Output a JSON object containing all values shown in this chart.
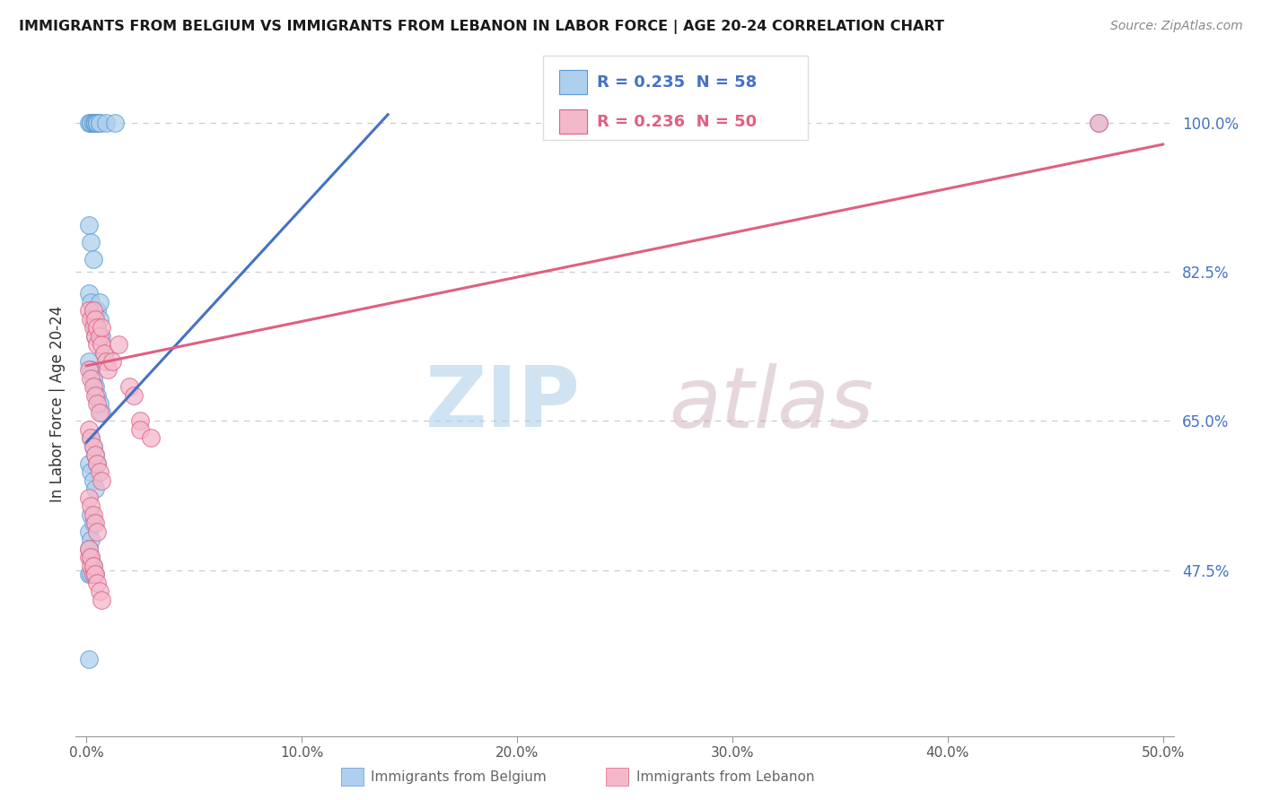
{
  "title": "IMMIGRANTS FROM BELGIUM VS IMMIGRANTS FROM LEBANON IN LABOR FORCE | AGE 20-24 CORRELATION CHART",
  "source": "Source: ZipAtlas.com",
  "ylabel": "In Labor Force | Age 20-24",
  "xlim": [
    -0.005,
    0.505
  ],
  "ylim": [
    0.28,
    1.06
  ],
  "xtick_labels": [
    "0.0%",
    "10.0%",
    "20.0%",
    "30.0%",
    "40.0%",
    "50.0%"
  ],
  "xtick_vals": [
    0.0,
    0.1,
    0.2,
    0.3,
    0.4,
    0.5
  ],
  "ytick_labels": [
    "47.5%",
    "65.0%",
    "82.5%",
    "100.0%"
  ],
  "ytick_vals": [
    0.475,
    0.65,
    0.825,
    1.0
  ],
  "belgium_fill": "#aecfed",
  "belgium_edge": "#5b9bd5",
  "lebanon_fill": "#f4b8cb",
  "lebanon_edge": "#e06080",
  "belgium_line_color": "#4472c4",
  "lebanon_line_color": "#e06080",
  "legend_text_belgium": "R = 0.235  N = 58",
  "legend_text_lebanon": "R = 0.236  N = 50",
  "watermark_zip": "ZIP",
  "watermark_atlas": "atlas",
  "grid_color": "#cccccc",
  "background_color": "#ffffff",
  "bottom_legend_belgium": "Immigrants from Belgium",
  "bottom_legend_lebanon": "Immigrants from Lebanon",
  "bel_x": [
    0.001,
    0.002,
    0.002,
    0.003,
    0.003,
    0.004,
    0.004,
    0.004,
    0.005,
    0.005,
    0.005,
    0.006,
    0.006,
    0.009,
    0.013,
    0.001,
    0.002,
    0.003,
    0.001,
    0.002,
    0.003,
    0.003,
    0.004,
    0.004,
    0.005,
    0.005,
    0.006,
    0.006,
    0.007,
    0.008,
    0.001,
    0.002,
    0.003,
    0.004,
    0.005,
    0.006,
    0.007,
    0.001,
    0.002,
    0.003,
    0.004,
    0.001,
    0.002,
    0.001,
    0.47,
    0.001,
    0.002,
    0.003,
    0.004,
    0.001,
    0.002,
    0.003,
    0.002,
    0.003,
    0.002,
    0.003,
    0.004,
    0.005
  ],
  "bel_y": [
    1.0,
    1.0,
    1.0,
    1.0,
    1.0,
    1.0,
    1.0,
    1.0,
    1.0,
    1.0,
    1.0,
    1.0,
    1.0,
    1.0,
    1.0,
    0.88,
    0.86,
    0.84,
    0.8,
    0.79,
    0.78,
    0.77,
    0.76,
    0.75,
    0.78,
    0.76,
    0.79,
    0.77,
    0.75,
    0.73,
    0.72,
    0.71,
    0.7,
    0.69,
    0.68,
    0.67,
    0.66,
    0.6,
    0.59,
    0.58,
    0.57,
    0.52,
    0.51,
    0.37,
    1.0,
    0.47,
    0.47,
    0.47,
    0.47,
    0.5,
    0.49,
    0.48,
    0.54,
    0.53,
    0.63,
    0.62,
    0.61,
    0.6
  ],
  "leb_x": [
    0.001,
    0.002,
    0.003,
    0.003,
    0.004,
    0.004,
    0.005,
    0.005,
    0.006,
    0.007,
    0.007,
    0.001,
    0.002,
    0.003,
    0.004,
    0.005,
    0.006,
    0.001,
    0.002,
    0.003,
    0.004,
    0.005,
    0.006,
    0.007,
    0.001,
    0.002,
    0.003,
    0.004,
    0.005,
    0.001,
    0.002,
    0.003,
    0.008,
    0.009,
    0.01,
    0.012,
    0.015,
    0.02,
    0.022,
    0.025,
    0.025,
    0.03,
    0.47,
    0.001,
    0.002,
    0.003,
    0.004,
    0.005,
    0.006,
    0.007
  ],
  "leb_y": [
    0.78,
    0.77,
    0.76,
    0.78,
    0.75,
    0.77,
    0.76,
    0.74,
    0.75,
    0.74,
    0.76,
    0.71,
    0.7,
    0.69,
    0.68,
    0.67,
    0.66,
    0.64,
    0.63,
    0.62,
    0.61,
    0.6,
    0.59,
    0.58,
    0.56,
    0.55,
    0.54,
    0.53,
    0.52,
    0.49,
    0.48,
    0.47,
    0.73,
    0.72,
    0.71,
    0.72,
    0.74,
    0.69,
    0.68,
    0.65,
    0.64,
    0.63,
    1.0,
    0.5,
    0.49,
    0.48,
    0.47,
    0.46,
    0.45,
    0.44
  ],
  "bel_line_x": [
    0.0,
    0.14
  ],
  "bel_line_y": [
    0.625,
    1.01
  ],
  "leb_line_x": [
    0.0,
    0.5
  ],
  "leb_line_y": [
    0.715,
    0.975
  ]
}
